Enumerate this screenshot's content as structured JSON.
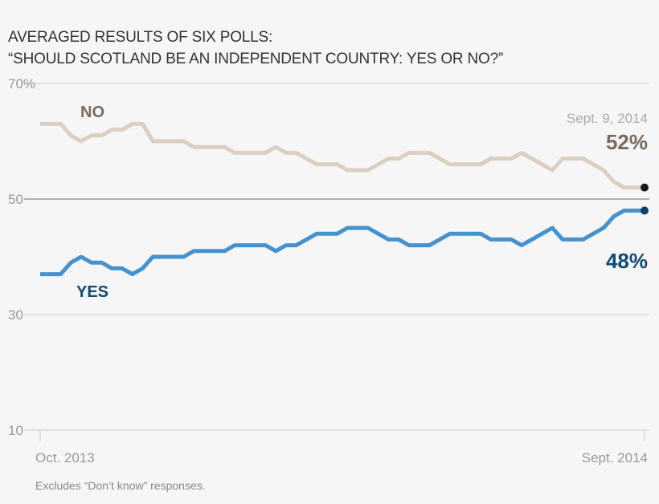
{
  "chart_data": {
    "type": "line",
    "title": "AVERAGED RESULTS OF SIX POLLS:",
    "subtitle": "“SHOULD SCOTLAND BE AN INDEPENDENT COUNTRY: YES OR NO?”",
    "xlabel": "",
    "ylabel": "",
    "ylim": [
      10,
      70
    ],
    "yticks": [
      {
        "value": 10,
        "label": "10"
      },
      {
        "value": 30,
        "label": "30"
      },
      {
        "value": 50,
        "label": "50"
      },
      {
        "value": 70,
        "label": "70%"
      }
    ],
    "xtick_labels": [
      "Oct. 2013",
      "Sept. 2014"
    ],
    "grid": true,
    "series": [
      {
        "name": "NO",
        "color": "#dccfc0",
        "label_color": "#7a6a5e",
        "end_label": "52%",
        "values": [
          63,
          63,
          63,
          61,
          60,
          61,
          61,
          62,
          62,
          63,
          63,
          60,
          60,
          60,
          60,
          59,
          59,
          59,
          59,
          58,
          58,
          58,
          58,
          59,
          58,
          58,
          57,
          56,
          56,
          56,
          55,
          55,
          55,
          56,
          57,
          57,
          58,
          58,
          58,
          57,
          56,
          56,
          56,
          56,
          57,
          57,
          57,
          58,
          57,
          56,
          55,
          57,
          57,
          57,
          56,
          55,
          53,
          52,
          52,
          52
        ]
      },
      {
        "name": "YES",
        "color": "#4493d0",
        "label_color": "#0d4a78",
        "end_label": "48%",
        "values": [
          37,
          37,
          37,
          39,
          40,
          39,
          39,
          38,
          38,
          37,
          38,
          40,
          40,
          40,
          40,
          41,
          41,
          41,
          41,
          42,
          42,
          42,
          42,
          41,
          42,
          42,
          43,
          44,
          44,
          44,
          45,
          45,
          45,
          44,
          43,
          43,
          42,
          42,
          42,
          43,
          44,
          44,
          44,
          44,
          43,
          43,
          43,
          42,
          43,
          44,
          45,
          43,
          43,
          43,
          44,
          45,
          47,
          48,
          48,
          48
        ]
      }
    ],
    "annotation": "Sept. 9, 2014",
    "note": "Excludes “Don’t know” responses."
  }
}
